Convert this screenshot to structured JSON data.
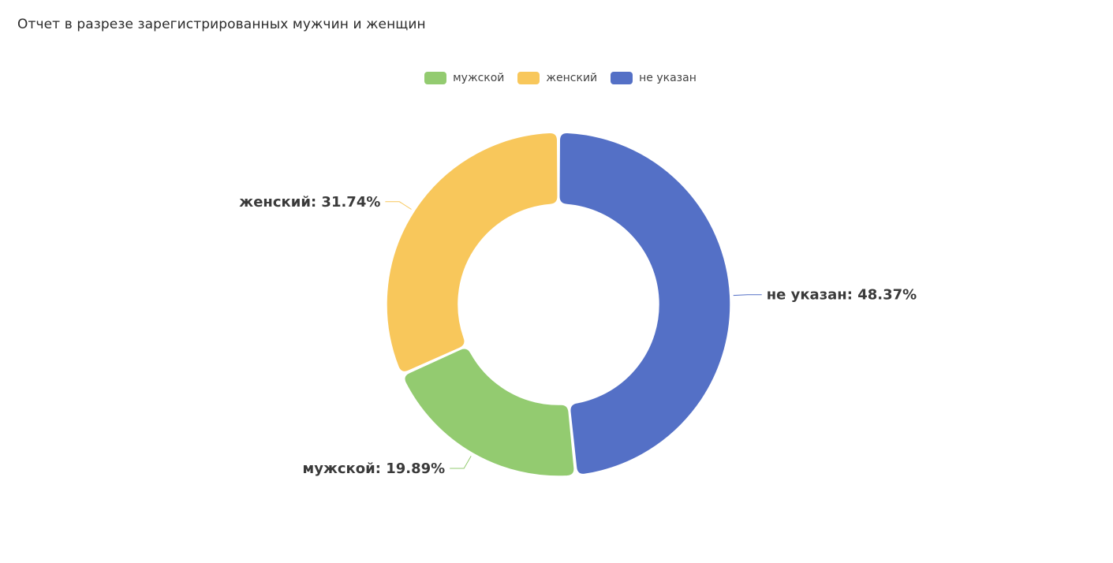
{
  "header": {
    "title": "Отчет в разрезе зарегистрированных мужчин и женщин"
  },
  "legend": {
    "items": [
      {
        "label": "мужской",
        "color": "#93cb70"
      },
      {
        "label": "женский",
        "color": "#f8c75b"
      },
      {
        "label": "не указан",
        "color": "#5470c6"
      }
    ]
  },
  "chart_data": {
    "type": "pie",
    "variant": "donut",
    "title": "Отчет в разрезе зарегистрированных мужчин и женщин",
    "legend_position": "top-center",
    "slices": [
      {
        "name": "не указан",
        "value": 48.37,
        "color": "#5470c6",
        "label": "не указан: 48.37%"
      },
      {
        "name": "мужской",
        "value": 19.89,
        "color": "#93cb70",
        "label": "мужской: 19.89%"
      },
      {
        "name": "женский",
        "value": 31.74,
        "color": "#f8c75b",
        "label": "женский: 31.74%"
      }
    ],
    "unit": "%"
  }
}
